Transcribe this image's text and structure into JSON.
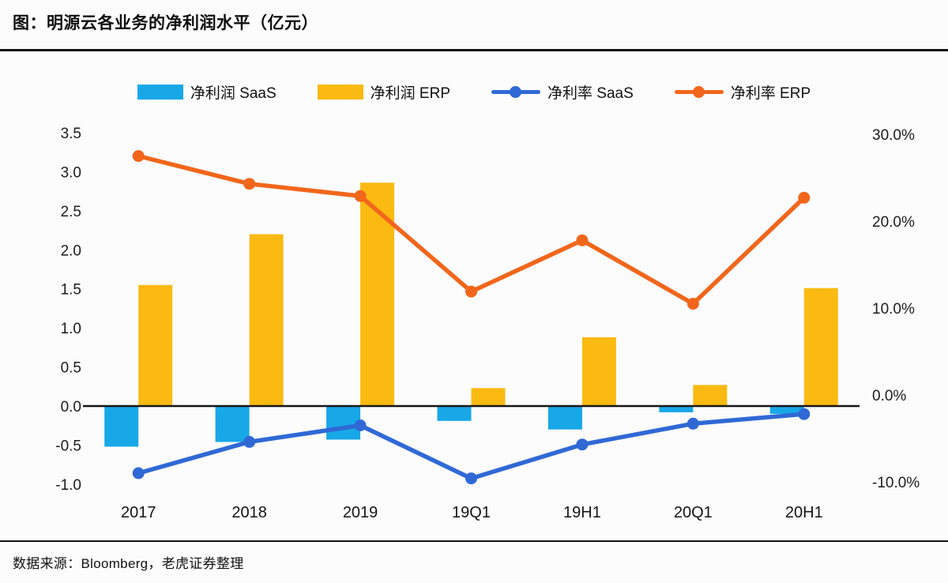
{
  "header": {
    "title": "图：明源云各业务的净利润水平（亿元）"
  },
  "footer": {
    "source": "数据来源：Bloomberg，老虎证券整理"
  },
  "colors": {
    "saas_bar": "#18a8e8",
    "erp_bar": "#fbba12",
    "saas_line": "#3069d6",
    "erp_line": "#f2661b",
    "axis": "#161616",
    "text": "#1c1c1c"
  },
  "chart_data": {
    "type": "bar+line",
    "title": "明源云各业务的净利润水平（亿元）",
    "categories": [
      "2017",
      "2018",
      "2019",
      "19Q1",
      "19H1",
      "20Q1",
      "20H1"
    ],
    "series": [
      {
        "name": "净利润 SaaS",
        "type": "bar",
        "axis": "left",
        "color": "#18a8e8",
        "values": [
          -0.52,
          -0.46,
          -0.43,
          -0.19,
          -0.3,
          -0.08,
          -0.1
        ]
      },
      {
        "name": "净利润 ERP",
        "type": "bar",
        "axis": "left",
        "color": "#fbba12",
        "values": [
          1.55,
          2.2,
          2.86,
          0.23,
          0.88,
          0.27,
          1.51
        ]
      },
      {
        "name": "净利率 SaaS",
        "type": "line",
        "axis": "right",
        "color": "#3069d6",
        "values": [
          -9.0,
          -5.4,
          -3.5,
          -9.6,
          -5.7,
          -3.3,
          -2.2
        ]
      },
      {
        "name": "净利率 ERP",
        "type": "line",
        "axis": "right",
        "color": "#f2661b",
        "values": [
          27.5,
          24.3,
          22.9,
          11.9,
          17.8,
          10.5,
          22.7
        ]
      }
    ],
    "left_axis": {
      "ticks": [
        "3.5",
        "3.0",
        "2.5",
        "2.0",
        "1.5",
        "1.0",
        "0.5",
        "0.0",
        "-0.5",
        "-1.0"
      ],
      "range": [
        -1.0,
        3.5
      ],
      "unit": "亿元"
    },
    "right_axis": {
      "ticks": [
        "30.0%",
        "20.0%",
        "10.0%",
        "0.0%",
        "-10.0%"
      ],
      "range": [
        -10,
        30
      ],
      "unit": "%"
    },
    "legend": [
      {
        "label": "净利润 SaaS",
        "swatch": "bar",
        "color": "#18a8e8"
      },
      {
        "label": "净利润 ERP",
        "swatch": "bar",
        "color": "#fbba12"
      },
      {
        "label": "净利率 SaaS",
        "swatch": "line",
        "color": "#3069d6"
      },
      {
        "label": "净利率 ERP",
        "swatch": "line",
        "color": "#f2661b"
      }
    ],
    "grid": "off",
    "legend_position": "top-center"
  }
}
